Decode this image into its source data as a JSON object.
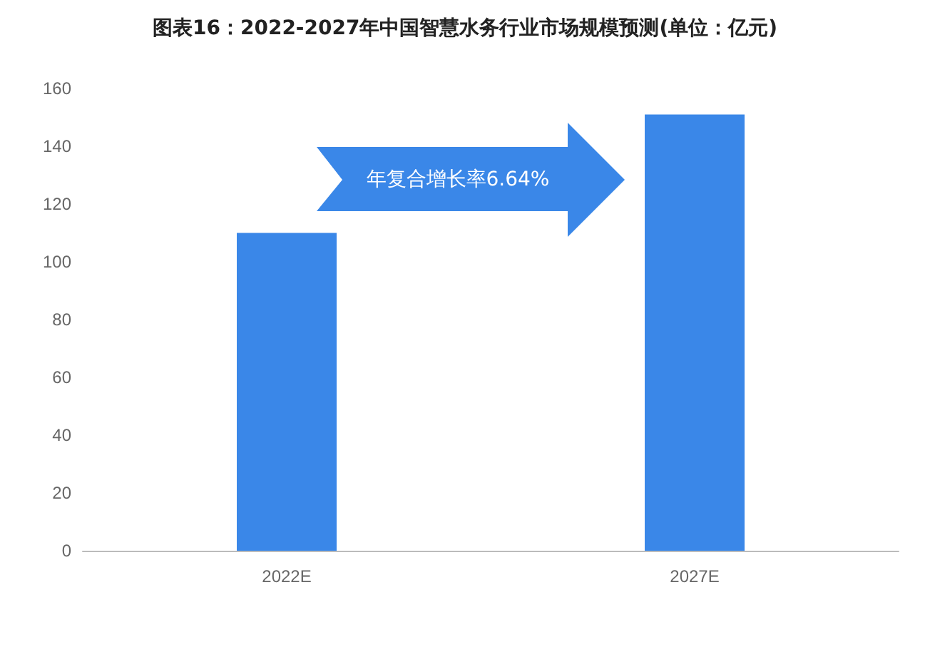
{
  "chart_data": {
    "type": "bar",
    "title": "图表16：2022-2027年中国智慧水务行业市场规模预测(单位：亿元)",
    "categories": [
      "2022E",
      "2027E"
    ],
    "values": [
      110,
      151
    ],
    "color": "#3a87e8",
    "ylim": [
      0,
      160
    ],
    "yticks": [
      0,
      20,
      40,
      60,
      80,
      100,
      120,
      140,
      160
    ],
    "grid": false,
    "annotations": [
      "年复合增长率6.64%"
    ]
  }
}
